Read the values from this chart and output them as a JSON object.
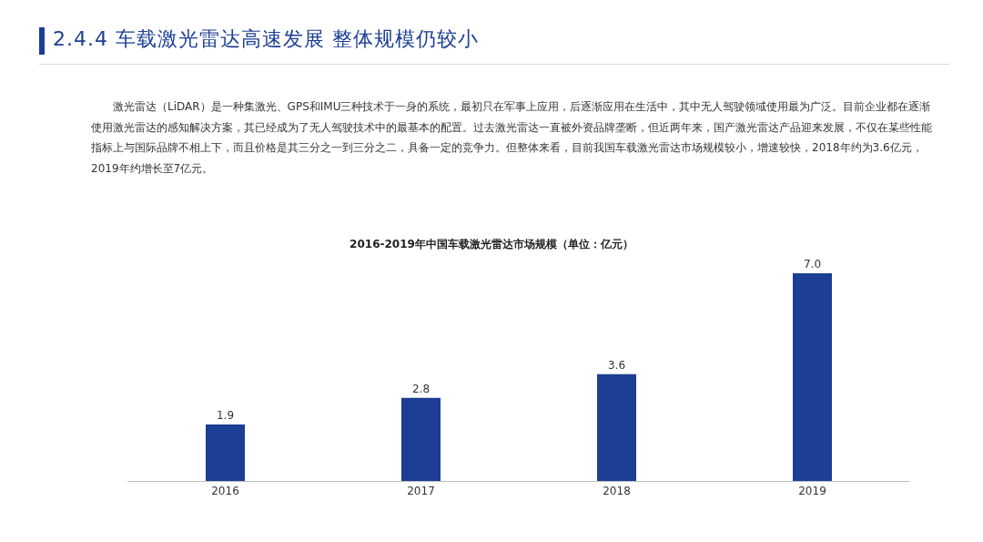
{
  "chart_data": {
    "type": "bar",
    "title": "2.4.4 车载激光雷达高速发展 整体规模仍较小",
    "subtitle": "2016-2019年中国车载激光雷达市场规模（单位：亿元）",
    "annotations": [
      "激光雷达（LiDAR）是一种集激光、GPS和IMU三种技术于一身的系统，最初只在军事上应用，后逐渐应用在生活中，其中无人驾驶领域使用最为广泛。目前企业都在逐渐使用激光雷达的感知解决方案，其已经成为了无人驾驶技术中的最基本的配置。过去激光雷达一直被外资品牌垄断，但近两年来，国产激光雷达产品迎来发展，不仅在某些性能指标上与国际品牌不相上下，而且价格是其三分之一到三分之二，具备一定的竞争力。但整体来看，目前我国车载激光雷达市场规模较小，增速较快，2018年约为3.6亿元，2019年约增长至7亿元。"
    ],
    "categories": [
      "2016",
      "2017",
      "2018",
      "2019"
    ],
    "values": [
      1.9,
      2.8,
      3.6,
      7.0
    ],
    "value_labels": [
      "1.9",
      "2.8",
      "3.6",
      "7.0"
    ],
    "color": "#1c3e94"
  }
}
